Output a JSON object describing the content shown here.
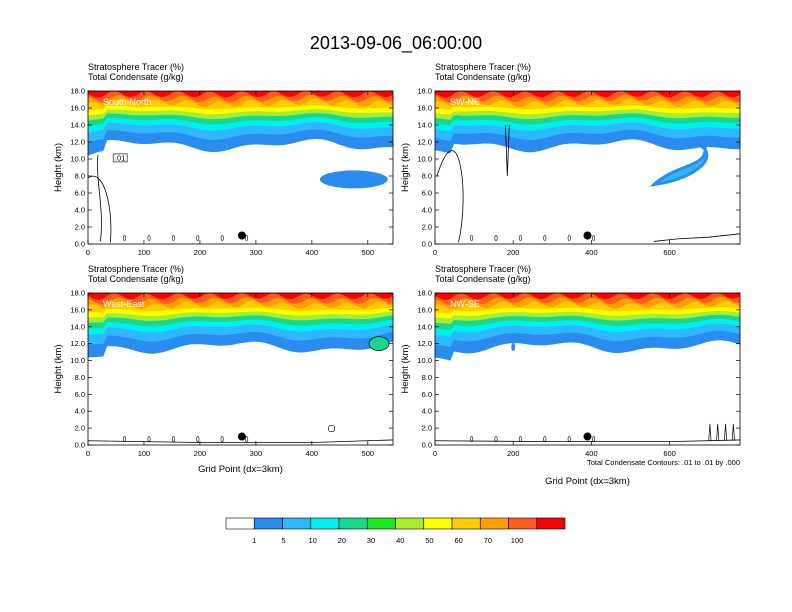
{
  "title": "2013-09-06_06:00:00",
  "colors": {
    "levels": [
      "#ffffff",
      "#2b8cf0",
      "#2fb7ff",
      "#00f0f0",
      "#18d890",
      "#1ee61e",
      "#a8ee30",
      "#ffff00",
      "#ffcc00",
      "#ffa000",
      "#ff5a1e",
      "#ff0000"
    ]
  },
  "chart_data": [
    {
      "type": "contour",
      "panel_label": "South-North",
      "subtitle_lines": [
        "Stratosphere Tracer   (%)",
        "Total Condensate   (g/kg)"
      ],
      "ylabel": "Height (km)",
      "xlabel": "",
      "xlim": [
        0,
        545
      ],
      "xticks": [
        0,
        100,
        200,
        300,
        400,
        500
      ],
      "ylim": [
        0,
        18
      ],
      "yticks": [
        "0.0",
        "2.0",
        "4.0",
        "6.0",
        "8.0",
        "10.0",
        "12.0",
        "14.0",
        "16.0",
        "18.0"
      ],
      "marker": {
        "x": 275,
        "y": 1.0
      },
      "contour_label": ".01",
      "condensate_note": ""
    },
    {
      "type": "contour",
      "panel_label": "SW-NE",
      "subtitle_lines": [
        "Stratosphere Tracer   (%)",
        "Total Condensate   (g/kg)"
      ],
      "ylabel": "Height (km)",
      "xlabel": "",
      "xlim": [
        0,
        780
      ],
      "xticks": [
        0,
        200,
        400,
        600
      ],
      "ylim": [
        0,
        18
      ],
      "yticks": [
        "0.0",
        "2.0",
        "4.0",
        "6.0",
        "8.0",
        "10.0",
        "12.0",
        "14.0",
        "16.0",
        "18.0"
      ],
      "marker": {
        "x": 390,
        "y": 1.0
      },
      "contour_label": "",
      "condensate_note": ""
    },
    {
      "type": "contour",
      "panel_label": "West-East",
      "subtitle_lines": [
        "Stratosphere Tracer   (%)",
        "Total Condensate   (g/kg)"
      ],
      "ylabel": "Height (km)",
      "xlabel": "Grid Point (dx=3km)",
      "xlim": [
        0,
        545
      ],
      "xticks": [
        0,
        100,
        200,
        300,
        400,
        500
      ],
      "ylim": [
        0,
        18
      ],
      "yticks": [
        "0.0",
        "2.0",
        "4.0",
        "6.0",
        "8.0",
        "10.0",
        "12.0",
        "14.0",
        "16.0",
        "18.0"
      ],
      "marker": {
        "x": 275,
        "y": 1.0
      },
      "contour_label": "",
      "condensate_note": ""
    },
    {
      "type": "contour",
      "panel_label": "NW-SE",
      "subtitle_lines": [
        "Stratosphere Tracer   (%)",
        "Total Condensate   (g/kg)"
      ],
      "ylabel": "Height (km)",
      "xlabel": "Grid Point (dx=3km)",
      "xlim": [
        0,
        780
      ],
      "xticks": [
        0,
        200,
        400,
        600
      ],
      "ylim": [
        0,
        18
      ],
      "yticks": [
        "0.0",
        "2.0",
        "4.0",
        "6.0",
        "8.0",
        "10.0",
        "12.0",
        "14.0",
        "16.0",
        "18.0"
      ],
      "marker": {
        "x": 390,
        "y": 1.0
      },
      "contour_label": "",
      "condensate_note": "Total Condensate Contours: .01 to .01 by .000"
    }
  ],
  "colorbar": {
    "labels": [
      "1",
      "5",
      "10",
      "20",
      "30",
      "40",
      "50",
      "60",
      "70",
      "100"
    ],
    "colors": [
      "#ffffff",
      "#2b8cf0",
      "#2fb7ff",
      "#00f0f0",
      "#18d890",
      "#1ee61e",
      "#a8ee30",
      "#ffff00",
      "#ffcc00",
      "#ffa000",
      "#ff5a1e",
      "#ff0000"
    ]
  }
}
